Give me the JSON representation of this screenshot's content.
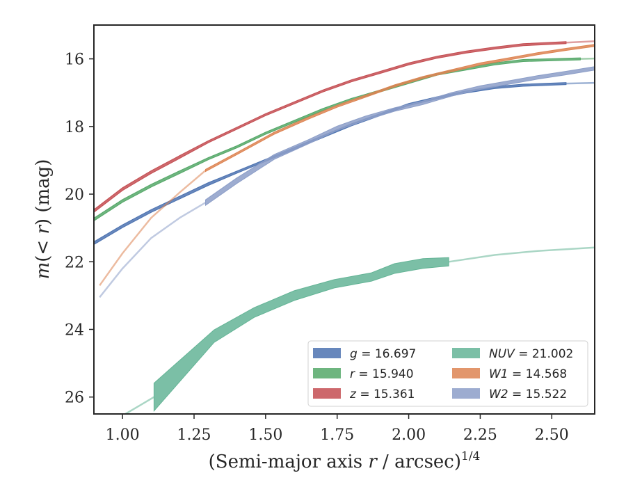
{
  "chart_data": {
    "type": "line",
    "xlabel": "(Semi-major axis r / arcsec)^{1/4}",
    "ylabel": "m(< r) (mag)",
    "xlim": [
      0.9,
      2.65
    ],
    "ylim": [
      26.5,
      15.0
    ],
    "y_inverted": true,
    "grid": false,
    "legend_placement": "lower-right",
    "xticks": [
      "1.00",
      "1.25",
      "1.50",
      "1.75",
      "2.00",
      "2.25",
      "2.50"
    ],
    "yticks": [
      "16",
      "18",
      "20",
      "22",
      "24",
      "26"
    ],
    "series": [
      {
        "name": "g = 16.697",
        "band": "g",
        "mag": "16.697",
        "color": "#4c72b0",
        "x": [
          0.9,
          1.0,
          1.1,
          1.2,
          1.3,
          1.4,
          1.5,
          1.6,
          1.7,
          1.8,
          1.9,
          2.0,
          2.1,
          2.2,
          2.3,
          2.4,
          2.55
        ],
        "y": [
          21.45,
          20.95,
          20.5,
          20.1,
          19.7,
          19.35,
          19.0,
          18.65,
          18.3,
          17.95,
          17.65,
          17.35,
          17.15,
          16.98,
          16.85,
          16.78,
          16.73
        ],
        "width": [
          4,
          4,
          4,
          4,
          4,
          3,
          3,
          3,
          3,
          3,
          3,
          3,
          3,
          3,
          3,
          3,
          3
        ],
        "ext_x": [
          2.55,
          2.6,
          2.65
        ],
        "ext_y": [
          16.73,
          16.72,
          16.71
        ]
      },
      {
        "name": "r = 15.940",
        "band": "r",
        "mag": "15.940",
        "color": "#55a868",
        "x": [
          0.9,
          1.0,
          1.1,
          1.2,
          1.3,
          1.4,
          1.5,
          1.6,
          1.7,
          1.8,
          1.9,
          2.0,
          2.1,
          2.2,
          2.3,
          2.4,
          2.6
        ],
        "y": [
          20.75,
          20.2,
          19.75,
          19.35,
          18.95,
          18.6,
          18.2,
          17.85,
          17.5,
          17.2,
          16.95,
          16.7,
          16.45,
          16.3,
          16.15,
          16.05,
          16.0
        ],
        "width": [
          4,
          4,
          4,
          4,
          3,
          3,
          3,
          3,
          3,
          3,
          3,
          3,
          3,
          3,
          3,
          3,
          3
        ],
        "ext_x": [
          2.6,
          2.65
        ],
        "ext_y": [
          16.0,
          15.99
        ]
      },
      {
        "name": "z = 15.361",
        "band": "z",
        "mag": "15.361",
        "color": "#c44e52",
        "x": [
          0.9,
          1.0,
          1.1,
          1.2,
          1.3,
          1.4,
          1.5,
          1.6,
          1.7,
          1.8,
          1.9,
          2.0,
          2.1,
          2.2,
          2.3,
          2.4,
          2.55
        ],
        "y": [
          20.5,
          19.85,
          19.35,
          18.9,
          18.45,
          18.05,
          17.65,
          17.3,
          16.95,
          16.65,
          16.4,
          16.15,
          15.95,
          15.8,
          15.68,
          15.58,
          15.52
        ],
        "width": [
          4,
          4,
          4,
          4,
          3,
          3,
          3,
          3,
          3,
          3,
          3,
          3,
          3,
          3,
          3,
          3,
          3
        ],
        "ext_x": [
          2.55,
          2.6,
          2.65
        ],
        "ext_y": [
          15.52,
          15.5,
          15.48
        ]
      },
      {
        "name": "NUV = 21.002",
        "band": "NUV",
        "mag": "21.002",
        "color": "#64b496",
        "x": [
          1.11,
          1.32,
          1.46,
          1.6,
          1.74,
          1.87,
          1.95,
          2.05,
          2.14
        ],
        "y": [
          26.0,
          24.2,
          23.5,
          23.0,
          22.65,
          22.45,
          22.2,
          22.05,
          22.0
        ],
        "width": [
          40,
          18,
          14,
          14,
          12,
          12,
          14,
          14,
          12
        ],
        "pre_x": [
          0.95,
          1.0,
          1.05,
          1.11
        ],
        "pre_y": [
          26.7,
          26.55,
          26.3,
          26.0
        ],
        "ext_x": [
          2.14,
          2.3,
          2.45,
          2.65
        ],
        "ext_y": [
          22.0,
          21.8,
          21.68,
          21.58
        ]
      },
      {
        "name": "W1 = 14.568",
        "band": "W1",
        "mag": "14.568",
        "color": "#dd8452",
        "x": [
          1.29,
          1.4,
          1.53,
          1.65,
          1.75,
          1.85,
          1.95,
          2.05,
          2.15,
          2.25,
          2.35,
          2.45,
          2.55,
          2.65
        ],
        "y": [
          19.3,
          18.8,
          18.2,
          17.75,
          17.4,
          17.1,
          16.8,
          16.55,
          16.35,
          16.15,
          16.0,
          15.85,
          15.72,
          15.6
        ],
        "width": [
          3,
          3,
          3,
          3,
          3,
          3,
          3,
          3,
          3,
          3,
          3,
          3,
          3,
          3
        ],
        "pre_x": [
          0.92,
          1.0,
          1.1,
          1.2,
          1.29
        ],
        "pre_y": [
          22.7,
          21.75,
          20.7,
          19.95,
          19.3
        ]
      },
      {
        "name": "W2 = 15.522",
        "band": "W2",
        "mag": "15.522",
        "color": "#8c9ec8",
        "x": [
          1.29,
          1.4,
          1.53,
          1.65,
          1.75,
          1.85,
          1.95,
          2.05,
          2.15,
          2.25,
          2.35,
          2.45,
          2.55,
          2.65
        ],
        "y": [
          20.25,
          19.6,
          18.9,
          18.45,
          18.05,
          17.75,
          17.5,
          17.3,
          17.05,
          16.85,
          16.7,
          16.55,
          16.42,
          16.28
        ],
        "width": [
          8,
          8,
          7,
          6,
          6,
          6,
          5,
          5,
          5,
          5,
          5,
          5,
          5,
          5
        ],
        "pre_x": [
          0.92,
          1.0,
          1.1,
          1.2,
          1.29
        ],
        "pre_y": [
          23.05,
          22.2,
          21.3,
          20.7,
          20.25
        ]
      }
    ]
  }
}
